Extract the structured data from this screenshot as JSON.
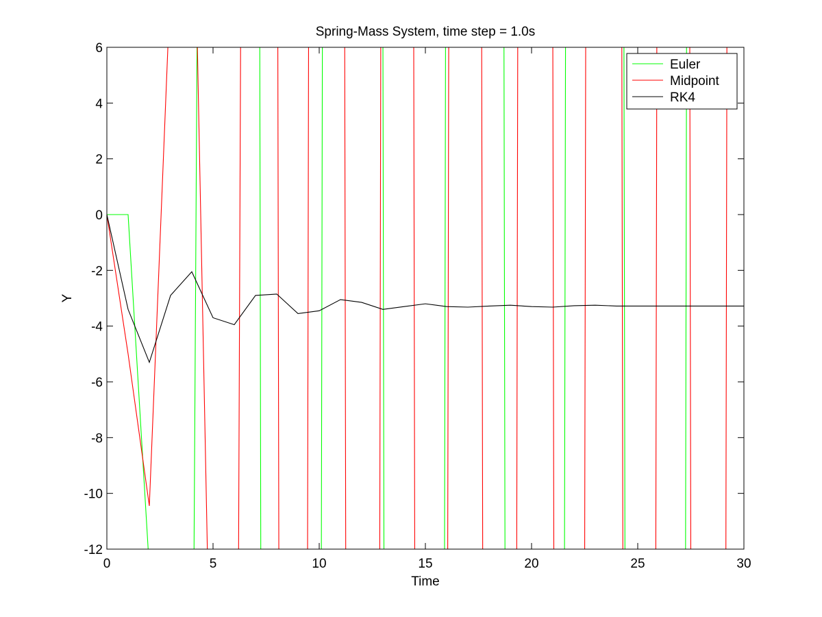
{
  "chart_data": {
    "type": "line",
    "title": "Spring-Mass System, time step = 1.0s",
    "xlabel": "Time",
    "ylabel": "Y",
    "xlim": [
      0,
      30
    ],
    "ylim": [
      -12,
      6
    ],
    "xticks": [
      0,
      5,
      10,
      15,
      20,
      25,
      30
    ],
    "yticks": [
      6,
      4,
      2,
      0,
      -2,
      -4,
      -6,
      -8,
      -10,
      -12
    ],
    "grid": false,
    "legend_position": "top-right",
    "series": [
      {
        "name": "Euler",
        "color": "#00ff00",
        "clipped": true,
        "points": [
          [
            0,
            0
          ],
          [
            1,
            0
          ],
          [
            2,
            -12.7
          ],
          [
            4.1,
            -12.7
          ],
          [
            4.25,
            6.5
          ],
          [
            7.2,
            6.5
          ],
          [
            7.25,
            -12.7
          ],
          [
            10.1,
            -12.7
          ],
          [
            10.15,
            6.5
          ],
          [
            13,
            6.5
          ],
          [
            13.05,
            -12.7
          ],
          [
            15.9,
            -12.7
          ],
          [
            15.95,
            6.5
          ],
          [
            18.7,
            6.5
          ],
          [
            18.75,
            -12.7
          ],
          [
            21.55,
            -12.7
          ],
          [
            21.6,
            6.5
          ],
          [
            24.35,
            6.5
          ],
          [
            24.4,
            -12.7
          ],
          [
            27.25,
            -12.7
          ],
          [
            27.3,
            6.5
          ],
          [
            30,
            6.5
          ]
        ]
      },
      {
        "name": "Midpoint",
        "color": "#ff0000",
        "clipped": true,
        "points": [
          [
            0,
            0
          ],
          [
            1,
            -5
          ],
          [
            2,
            -10.45
          ],
          [
            2.9,
            6.5
          ],
          [
            4.25,
            6.5
          ],
          [
            4.75,
            -12.7
          ],
          [
            6.2,
            -12.7
          ],
          [
            6.3,
            6.5
          ],
          [
            8.05,
            6.5
          ],
          [
            8.1,
            -12.7
          ],
          [
            9.45,
            -12.7
          ],
          [
            9.5,
            6.5
          ],
          [
            11.2,
            6.5
          ],
          [
            11.25,
            -12.7
          ],
          [
            12.85,
            -12.7
          ],
          [
            12.9,
            6.5
          ],
          [
            14.45,
            6.5
          ],
          [
            14.5,
            -12.7
          ],
          [
            16.05,
            -12.7
          ],
          [
            16.1,
            6.5
          ],
          [
            17.65,
            6.5
          ],
          [
            17.7,
            -12.7
          ],
          [
            19.3,
            -12.7
          ],
          [
            19.35,
            6.5
          ],
          [
            21,
            6.5
          ],
          [
            21.05,
            -12.7
          ],
          [
            22.5,
            -12.7
          ],
          [
            22.55,
            6.5
          ],
          [
            24.25,
            6.5
          ],
          [
            24.3,
            -12.7
          ],
          [
            25.85,
            -12.7
          ],
          [
            25.9,
            6.5
          ],
          [
            27.45,
            6.5
          ],
          [
            27.5,
            -12.7
          ],
          [
            29.15,
            -12.7
          ],
          [
            29.2,
            6.5
          ],
          [
            30,
            6.5
          ]
        ]
      },
      {
        "name": "RK4",
        "color": "#000000",
        "clipped": false,
        "points": [
          [
            0,
            0
          ],
          [
            1,
            -3.4
          ],
          [
            2,
            -5.3
          ],
          [
            3,
            -2.9
          ],
          [
            4,
            -2.05
          ],
          [
            5,
            -3.7
          ],
          [
            6,
            -3.95
          ],
          [
            7,
            -2.9
          ],
          [
            8,
            -2.85
          ],
          [
            9,
            -3.55
          ],
          [
            10,
            -3.45
          ],
          [
            11,
            -3.05
          ],
          [
            12,
            -3.15
          ],
          [
            13,
            -3.4
          ],
          [
            14,
            -3.3
          ],
          [
            15,
            -3.2
          ],
          [
            16,
            -3.3
          ],
          [
            17,
            -3.32
          ],
          [
            18,
            -3.28
          ],
          [
            19,
            -3.25
          ],
          [
            20,
            -3.3
          ],
          [
            21,
            -3.32
          ],
          [
            22,
            -3.27
          ],
          [
            23,
            -3.25
          ],
          [
            24,
            -3.28
          ],
          [
            25,
            -3.28
          ],
          [
            26,
            -3.28
          ],
          [
            27,
            -3.28
          ],
          [
            28,
            -3.28
          ],
          [
            29,
            -3.28
          ],
          [
            30,
            -3.28
          ]
        ]
      }
    ]
  }
}
